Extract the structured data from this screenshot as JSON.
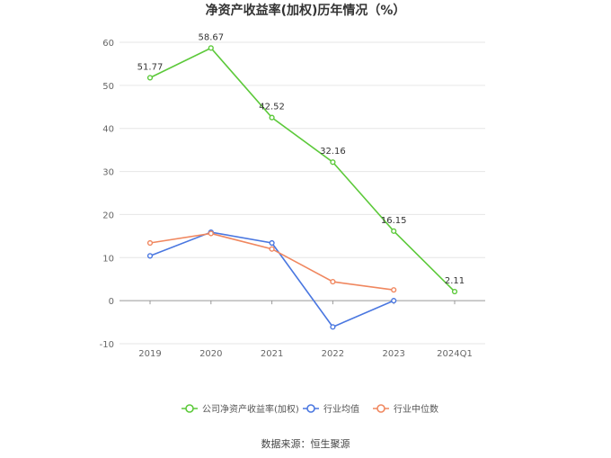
{
  "chart_data": {
    "type": "line",
    "title": "净资产收益率(加权)历年情况（%）",
    "categories": [
      "2019",
      "2020",
      "2021",
      "2022",
      "2023",
      "2024Q1"
    ],
    "ylim": [
      -10,
      60
    ],
    "yticks": [
      -10,
      0,
      10,
      20,
      30,
      40,
      50,
      60
    ],
    "grid": true,
    "legend_position": "bottom",
    "series": [
      {
        "name": "公司净资产收益率(加权)",
        "color": "#5cc93a",
        "values": [
          51.77,
          58.67,
          42.52,
          32.16,
          16.15,
          2.11
        ],
        "labels": [
          "51.77",
          "58.67",
          "42.52",
          "32.16",
          "16.15",
          "2.11"
        ]
      },
      {
        "name": "行业均值",
        "color": "#4a77e0",
        "values": [
          10.4,
          15.9,
          13.4,
          -6.1,
          0.0,
          null
        ]
      },
      {
        "name": "行业中位数",
        "color": "#f0875f",
        "values": [
          13.4,
          15.6,
          12.0,
          4.4,
          2.5,
          null
        ]
      }
    ]
  },
  "source": "数据来源：恒生聚源"
}
